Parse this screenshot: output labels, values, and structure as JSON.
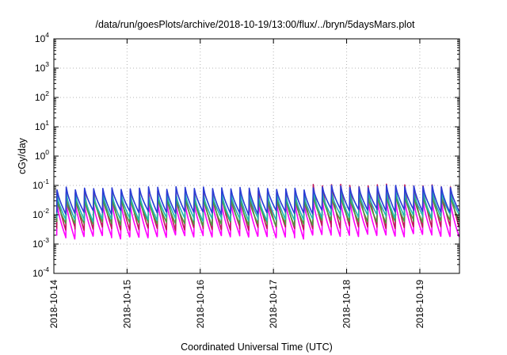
{
  "chart_data": {
    "type": "line",
    "title": "/data/run/goesPlots/archive/2018-10-19/13:00/flux/../bryn/5daysMars.plot",
    "xlabel": "Coordinated Universal Time (UTC)",
    "ylabel": "cGy/day",
    "y_scale": "log",
    "ylim": [
      0.0001,
      10000
    ],
    "y_ticks": [
      {
        "base": "10",
        "exp": "-4"
      },
      {
        "base": "10",
        "exp": "-3"
      },
      {
        "base": "10",
        "exp": "-2"
      },
      {
        "base": "10",
        "exp": "-1"
      },
      {
        "base": "10",
        "exp": "0"
      },
      {
        "base": "10",
        "exp": "1"
      },
      {
        "base": "10",
        "exp": "2"
      },
      {
        "base": "10",
        "exp": "3"
      },
      {
        "base": "10",
        "exp": "4"
      }
    ],
    "xlim": [
      "2018-10-14T00:00",
      "2018-10-19T13:00"
    ],
    "x_ticks": [
      "2018-10-14",
      "2018-10-15",
      "2018-10-16",
      "2018-10-17",
      "2018-10-18",
      "2018-10-19"
    ],
    "grid": true,
    "legend": "none",
    "cycle_hours": 3,
    "series": [
      {
        "color": "#2a3bd6",
        "peak": 0.08,
        "trough": 0.012,
        "late_peak": 0.09,
        "late_trough": 0.014
      },
      {
        "color": "#1fb8b0",
        "peak": 0.05,
        "trough": 0.007,
        "late_peak": 0.06,
        "late_trough": 0.009
      },
      {
        "color": "#4d9a3c",
        "peak": 0.035,
        "trough": 0.005,
        "late_peak": 0.045,
        "late_trough": 0.006
      },
      {
        "color": "#c0195a",
        "peak": 0.06,
        "trough": 0.0035,
        "late_peak": 0.1,
        "late_trough": 0.004
      },
      {
        "color": "#ff00ff",
        "peak": 0.025,
        "trough": 0.0018,
        "late_peak": 0.03,
        "late_trough": 0.002
      }
    ]
  }
}
